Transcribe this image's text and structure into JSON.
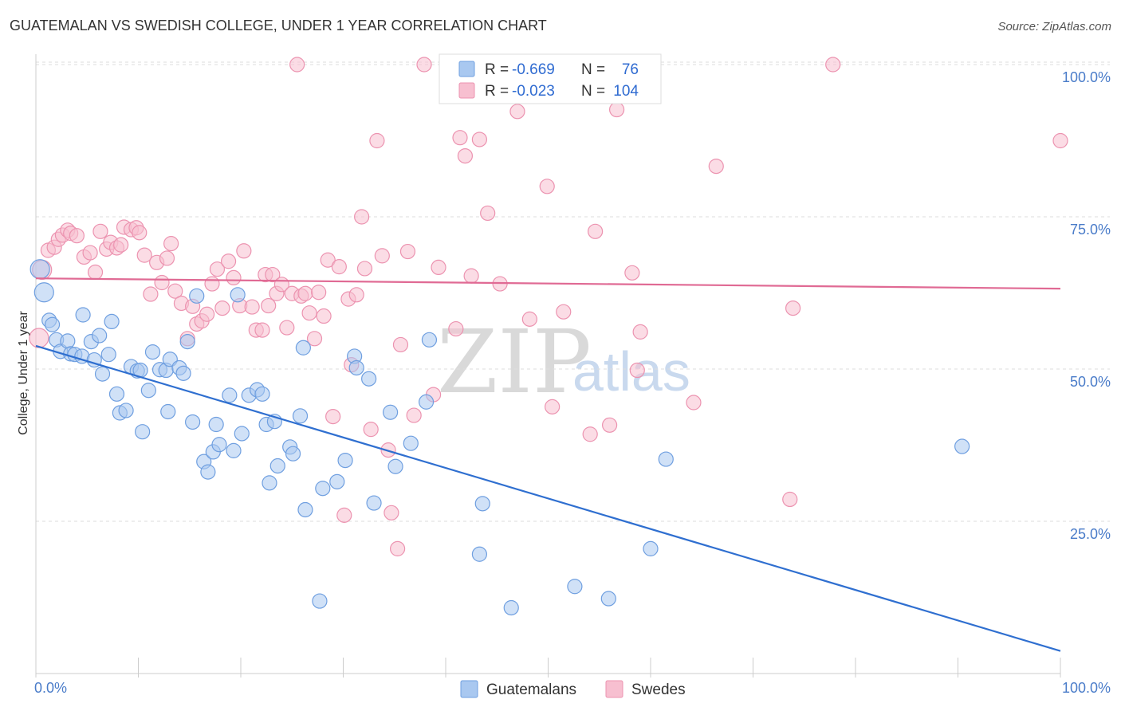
{
  "title": "GUATEMALAN VS SWEDISH COLLEGE, UNDER 1 YEAR CORRELATION CHART",
  "source": "Source: ZipAtlas.com",
  "watermark": {
    "zip": "ZIP",
    "atlas": "atlas"
  },
  "colors": {
    "guatemalans_fill": "#a9c8f0",
    "guatemalans_stroke": "#6f9fe0",
    "guatemalans_line": "#2f6fd0",
    "swedes_fill": "#f7bfd0",
    "swedes_stroke": "#ec93b0",
    "swedes_line": "#e06a94",
    "grid": "#dddddd",
    "axis_text": "#4a7cc9"
  },
  "legend": {
    "rows": [
      {
        "r_label": "R =",
        "r_value": "-0.669",
        "n_label": "N =",
        "n_value": "76"
      },
      {
        "r_label": "R =",
        "r_value": "-0.023",
        "n_label": "N =",
        "n_value": "104"
      }
    ]
  },
  "bottom_legend": [
    "Guatemalans",
    "Swedes"
  ],
  "chart_data": {
    "type": "scatter",
    "title": "GUATEMALAN VS SWEDISH COLLEGE, UNDER 1 YEAR CORRELATION CHART",
    "xlabel": "",
    "ylabel": "College, Under 1 year",
    "xlim": [
      0,
      100
    ],
    "ylim": [
      0,
      104
    ],
    "x_tick_labels": [
      "0.0%",
      "100.0%"
    ],
    "y_ticks": [
      25,
      50,
      75,
      100
    ],
    "y_tick_labels": [
      "25.0%",
      "50.0%",
      "75.0%",
      "100.0%"
    ],
    "grid": true,
    "legend_position": "top-center",
    "series": [
      {
        "name": "Guatemalans",
        "r": -0.669,
        "n": 76,
        "trend": {
          "x": [
            0,
            100
          ],
          "y": [
            53.8,
            3.7
          ]
        },
        "points": [
          [
            0.4,
            66.4
          ],
          [
            0.8,
            62.6
          ],
          [
            1.3,
            58.0
          ],
          [
            1.6,
            57.3
          ],
          [
            2.0,
            54.8
          ],
          [
            2.4,
            52.9
          ],
          [
            3.1,
            54.6
          ],
          [
            3.4,
            52.5
          ],
          [
            3.8,
            52.4
          ],
          [
            4.5,
            52.1
          ],
          [
            4.6,
            58.9
          ],
          [
            5.4,
            54.5
          ],
          [
            5.7,
            51.5
          ],
          [
            6.2,
            55.5
          ],
          [
            6.5,
            49.2
          ],
          [
            7.1,
            52.4
          ],
          [
            7.4,
            57.8
          ],
          [
            7.9,
            45.9
          ],
          [
            8.2,
            42.8
          ],
          [
            8.8,
            43.2
          ],
          [
            9.3,
            50.4
          ],
          [
            9.9,
            49.7
          ],
          [
            10.2,
            49.8
          ],
          [
            10.4,
            39.7
          ],
          [
            11.0,
            46.5
          ],
          [
            11.4,
            52.8
          ],
          [
            12.1,
            49.9
          ],
          [
            12.7,
            49.8
          ],
          [
            12.9,
            43.0
          ],
          [
            13.1,
            51.6
          ],
          [
            14.0,
            50.2
          ],
          [
            14.4,
            49.3
          ],
          [
            14.8,
            54.5
          ],
          [
            15.3,
            41.3
          ],
          [
            15.7,
            62.0
          ],
          [
            16.4,
            34.8
          ],
          [
            16.8,
            33.1
          ],
          [
            17.3,
            36.4
          ],
          [
            17.6,
            40.9
          ],
          [
            17.9,
            37.6
          ],
          [
            18.9,
            45.7
          ],
          [
            19.3,
            36.6
          ],
          [
            19.7,
            62.2
          ],
          [
            20.1,
            39.4
          ],
          [
            20.8,
            45.7
          ],
          [
            21.6,
            46.6
          ],
          [
            22.1,
            45.9
          ],
          [
            22.5,
            40.9
          ],
          [
            22.8,
            31.3
          ],
          [
            23.3,
            41.4
          ],
          [
            23.6,
            34.1
          ],
          [
            24.8,
            37.2
          ],
          [
            25.1,
            36.1
          ],
          [
            25.8,
            42.3
          ],
          [
            26.1,
            53.5
          ],
          [
            26.3,
            26.9
          ],
          [
            27.7,
            11.9
          ],
          [
            28.0,
            30.4
          ],
          [
            29.4,
            31.5
          ],
          [
            30.2,
            35.0
          ],
          [
            31.1,
            52.1
          ],
          [
            31.3,
            50.2
          ],
          [
            32.5,
            48.4
          ],
          [
            33.0,
            28.0
          ],
          [
            34.6,
            42.9
          ],
          [
            35.1,
            34.0
          ],
          [
            36.6,
            37.8
          ],
          [
            38.1,
            44.6
          ],
          [
            38.4,
            54.8
          ],
          [
            43.3,
            19.6
          ],
          [
            43.6,
            27.9
          ],
          [
            46.4,
            10.8
          ],
          [
            52.6,
            14.3
          ],
          [
            55.9,
            12.3
          ],
          [
            60.0,
            20.5
          ],
          [
            61.5,
            35.2
          ],
          [
            90.4,
            37.3
          ]
        ]
      },
      {
        "name": "Swedes",
        "r": -0.023,
        "n": 104,
        "trend": {
          "x": [
            0,
            100
          ],
          "y": [
            64.9,
            63.2
          ]
        },
        "points": [
          [
            0.3,
            55.1
          ],
          [
            0.6,
            66.3
          ],
          [
            1.2,
            69.5
          ],
          [
            1.8,
            70.0
          ],
          [
            2.2,
            71.3
          ],
          [
            2.6,
            72.0
          ],
          [
            3.1,
            72.8
          ],
          [
            3.4,
            72.3
          ],
          [
            4.0,
            71.9
          ],
          [
            4.7,
            68.4
          ],
          [
            5.3,
            69.1
          ],
          [
            5.8,
            65.9
          ],
          [
            6.3,
            72.6
          ],
          [
            6.9,
            69.7
          ],
          [
            7.3,
            70.8
          ],
          [
            7.9,
            69.9
          ],
          [
            8.3,
            70.4
          ],
          [
            8.6,
            73.3
          ],
          [
            9.3,
            72.9
          ],
          [
            9.8,
            73.2
          ],
          [
            10.1,
            72.4
          ],
          [
            10.6,
            68.7
          ],
          [
            11.2,
            62.3
          ],
          [
            11.8,
            67.5
          ],
          [
            12.3,
            64.2
          ],
          [
            12.8,
            68.2
          ],
          [
            13.2,
            70.6
          ],
          [
            13.6,
            62.8
          ],
          [
            14.2,
            60.8
          ],
          [
            14.8,
            55.0
          ],
          [
            15.3,
            60.3
          ],
          [
            15.7,
            57.4
          ],
          [
            16.2,
            57.9
          ],
          [
            16.7,
            59.0
          ],
          [
            17.2,
            64.0
          ],
          [
            17.7,
            66.4
          ],
          [
            18.2,
            60.0
          ],
          [
            18.8,
            67.7
          ],
          [
            19.3,
            65.0
          ],
          [
            19.9,
            60.4
          ],
          [
            20.3,
            69.4
          ],
          [
            21.1,
            60.2
          ],
          [
            21.5,
            56.4
          ],
          [
            22.1,
            56.4
          ],
          [
            22.4,
            65.5
          ],
          [
            22.7,
            60.4
          ],
          [
            23.1,
            65.5
          ],
          [
            23.5,
            62.4
          ],
          [
            24.0,
            63.9
          ],
          [
            24.5,
            56.8
          ],
          [
            25.0,
            62.4
          ],
          [
            25.5,
            100.0
          ],
          [
            25.9,
            62.0
          ],
          [
            26.3,
            62.4
          ],
          [
            26.7,
            59.2
          ],
          [
            27.2,
            55.0
          ],
          [
            27.6,
            62.6
          ],
          [
            28.1,
            58.7
          ],
          [
            28.5,
            67.9
          ],
          [
            29.0,
            42.2
          ],
          [
            29.6,
            66.8
          ],
          [
            30.1,
            26.0
          ],
          [
            30.5,
            61.5
          ],
          [
            30.8,
            50.7
          ],
          [
            31.3,
            62.2
          ],
          [
            31.8,
            75.0
          ],
          [
            32.1,
            66.5
          ],
          [
            32.7,
            40.1
          ],
          [
            33.3,
            87.5
          ],
          [
            33.8,
            68.6
          ],
          [
            34.4,
            36.7
          ],
          [
            34.7,
            26.4
          ],
          [
            35.3,
            20.5
          ],
          [
            35.6,
            54.0
          ],
          [
            36.3,
            69.3
          ],
          [
            36.9,
            42.4
          ],
          [
            37.9,
            100.0
          ],
          [
            38.8,
            45.8
          ],
          [
            39.3,
            66.7
          ],
          [
            41.0,
            56.6
          ],
          [
            41.4,
            88.0
          ],
          [
            41.9,
            85.0
          ],
          [
            42.5,
            65.3
          ],
          [
            43.3,
            87.7
          ],
          [
            44.1,
            75.6
          ],
          [
            45.3,
            64.0
          ],
          [
            46.0,
            100.0
          ],
          [
            47.0,
            92.3
          ],
          [
            48.2,
            58.2
          ],
          [
            49.9,
            80.0
          ],
          [
            50.4,
            43.8
          ],
          [
            51.5,
            59.4
          ],
          [
            54.1,
            39.3
          ],
          [
            54.6,
            72.6
          ],
          [
            56.0,
            40.8
          ],
          [
            56.7,
            92.6
          ],
          [
            58.2,
            65.8
          ],
          [
            58.7,
            49.8
          ],
          [
            59.0,
            56.1
          ],
          [
            64.2,
            44.5
          ],
          [
            66.4,
            83.3
          ],
          [
            73.6,
            28.6
          ],
          [
            73.9,
            60.0
          ],
          [
            77.8,
            100.0
          ],
          [
            100.0,
            87.5
          ]
        ]
      }
    ]
  }
}
